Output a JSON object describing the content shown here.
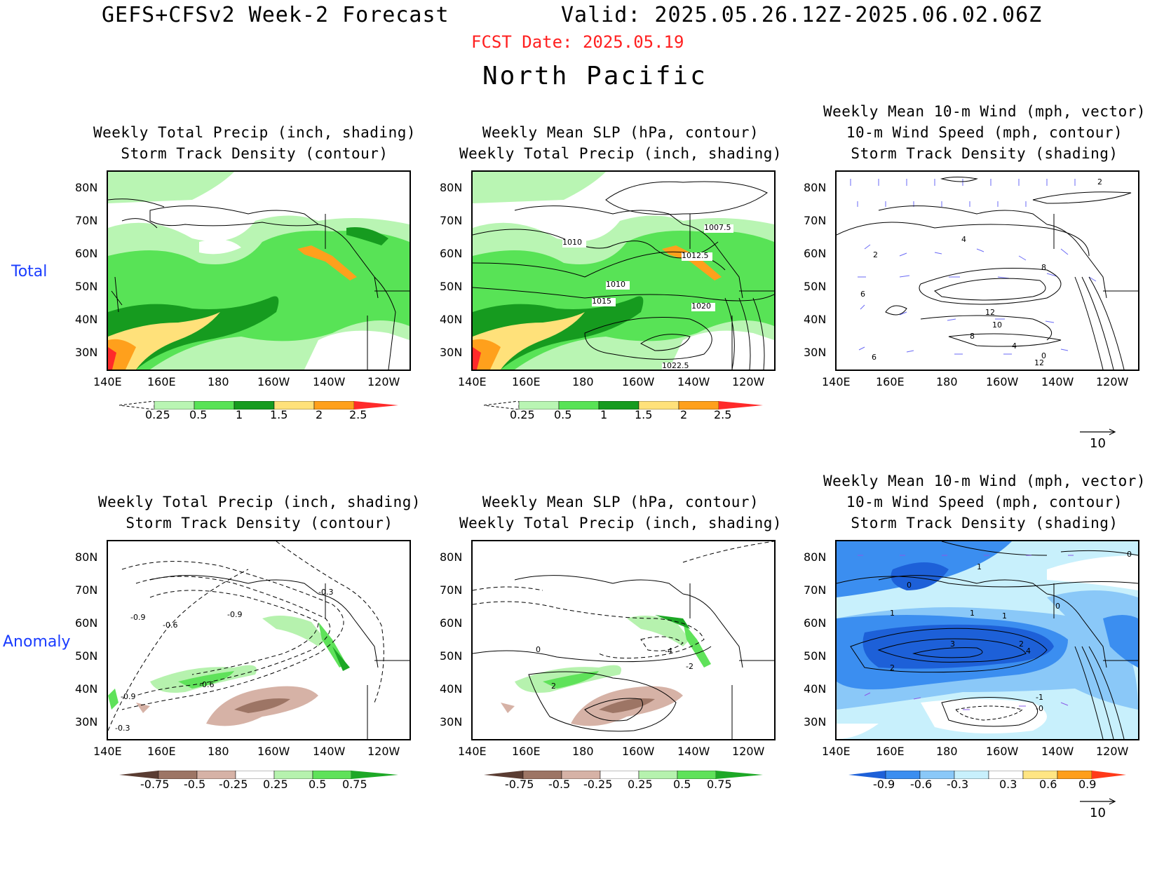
{
  "header": {
    "title": "GEFS+CFSv2 Week-2 Forecast",
    "valid": "Valid: 2025.05.26.12Z-2025.06.02.06Z",
    "fcst_date": "FCST Date: 2025.05.19",
    "region": "North Pacific"
  },
  "rows": {
    "total": "Total",
    "anomaly": "Anomaly"
  },
  "panels": {
    "p1": {
      "line1": "Weekly Total Precip (inch, shading)",
      "line2": "Storm Track Density (contour)"
    },
    "p2": {
      "line1": "Weekly Mean SLP (hPa, contour)",
      "line2": "Weekly Total Precip (inch, shading)"
    },
    "p3": {
      "line1": "Weekly Mean 10-m Wind (mph, vector)",
      "line2": "10-m Wind Speed (mph, contour)",
      "line3": "Storm Track Density (shading)"
    },
    "p4": {
      "line1": "Weekly Total Precip (inch, shading)",
      "line2": "Storm Track Density (contour)"
    },
    "p5": {
      "line1": "Weekly Mean SLP (hPa, contour)",
      "line2": "Weekly Total Precip (inch, shading)"
    },
    "p6": {
      "line1": "Weekly Mean 10-m Wind (mph, vector)",
      "line2": "10-m Wind Speed (mph, contour)",
      "line3": "Storm Track Density (shading)"
    }
  },
  "axes": {
    "lat": [
      "80N",
      "70N",
      "60N",
      "50N",
      "40N",
      "30N"
    ],
    "lon": [
      "140E",
      "160E",
      "180",
      "160W",
      "140W",
      "120W"
    ]
  },
  "colorbars": {
    "precip_total": {
      "labels": [
        "0.25",
        "0.5",
        "1",
        "1.5",
        "2",
        "2.5"
      ],
      "colors": [
        "#b9f5b3",
        "#58e356",
        "#169b1f",
        "#ffe17a",
        "#ffa01c",
        "#ff2a2a"
      ]
    },
    "precip_anom": {
      "labels": [
        "-0.75",
        "-0.5",
        "-0.25",
        "0.25",
        "0.5",
        "0.75"
      ],
      "colors": [
        "#5a3c32",
        "#9d7565",
        "#d6b2a6",
        "#ffffff",
        "#b6f2ae",
        "#5fe25a",
        "#1da826"
      ]
    },
    "storm_anom": {
      "labels": [
        "-0.9",
        "-0.6",
        "-0.3",
        "0.3",
        "0.6",
        "0.9"
      ],
      "colors": [
        "#1d60d8",
        "#3b8ef0",
        "#8ac8f8",
        "#c8f0fc",
        "#ffffff",
        "#ffe583",
        "#ff9e1a",
        "#ff3a1a"
      ]
    }
  },
  "contour_labels": {
    "p2": [
      "1010",
      "1007.5",
      "1012.5",
      "1010",
      "1015",
      "1020",
      "1022.5"
    ],
    "p3": [
      "2",
      "4",
      "2",
      "6",
      "8",
      "12",
      "10",
      "8",
      "4",
      "0",
      "12",
      "6"
    ],
    "p4": [
      "-0.3",
      "-0.9",
      "-0.6",
      "-0.9",
      "-0.9",
      "-0.6",
      "-0.3"
    ],
    "p5": [
      "0",
      "-4",
      "-2",
      "2"
    ],
    "p6": [
      "0",
      "1",
      "0",
      "1",
      "1",
      "1",
      "0",
      "3",
      "2",
      "4",
      "2",
      "-1",
      "-0"
    ]
  },
  "reference_vector": "10"
}
